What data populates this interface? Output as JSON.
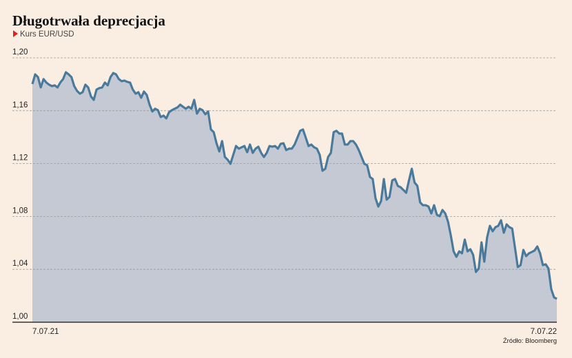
{
  "chart_data": {
    "type": "area",
    "title": "Długotrwała deprecjacja",
    "subtitle": "Kurs EUR/USD",
    "source": "Źródło: Bloomberg",
    "color": "#4a7a9b",
    "fill_color": "#c4c9d4",
    "grid": true,
    "ylim": [
      1.0,
      1.2
    ],
    "yticks": [
      {
        "value": 1.0,
        "label": "1,00"
      },
      {
        "value": 1.04,
        "label": "1,04"
      },
      {
        "value": 1.08,
        "label": "1,08"
      },
      {
        "value": 1.12,
        "label": "1,12"
      },
      {
        "value": 1.16,
        "label": "1,16"
      },
      {
        "value": 1.2,
        "label": "1,20"
      }
    ],
    "categories": [
      "7.07.21",
      null,
      null,
      null,
      null,
      null,
      null,
      null,
      null,
      null,
      null,
      null,
      null,
      null,
      null,
      null,
      null,
      null,
      null,
      null,
      null,
      null,
      null,
      null,
      null,
      null,
      null,
      null,
      null,
      null,
      null,
      null,
      null,
      null,
      null,
      null,
      null,
      null,
      null,
      null,
      null,
      null,
      null,
      null,
      null,
      null,
      null,
      null,
      null,
      null,
      null,
      null,
      null,
      null,
      null,
      null,
      null,
      null,
      null,
      null,
      null,
      null,
      null,
      null,
      null,
      null,
      null,
      null,
      null,
      null,
      null,
      null,
      null,
      null,
      null,
      null,
      null,
      null,
      null,
      null,
      null,
      null,
      null,
      null,
      null,
      null,
      null,
      null,
      null,
      null,
      null,
      null,
      null,
      null,
      null,
      null,
      null,
      null,
      null,
      null,
      null,
      null,
      null,
      null,
      null,
      null,
      null,
      null,
      null,
      null,
      null,
      null,
      null,
      null,
      null,
      null,
      null,
      null,
      null,
      null,
      null,
      null,
      null,
      null,
      null,
      null,
      null,
      null,
      null,
      null,
      null,
      null,
      null,
      null,
      null,
      null,
      null,
      null,
      null,
      null,
      null,
      null,
      null,
      null,
      null,
      null,
      null,
      null,
      null,
      null,
      null,
      null,
      null,
      null,
      null,
      null,
      null,
      null,
      null,
      null,
      null,
      null,
      null,
      null,
      null,
      null,
      null,
      null,
      null,
      null,
      null,
      null,
      null,
      null,
      null,
      null,
      null,
      null,
      null,
      null,
      null,
      null,
      null,
      null,
      null,
      null,
      null,
      null,
      "7.07.22"
    ],
    "values": [
      1.1802,
      1.1875,
      1.1854,
      1.1776,
      1.1839,
      1.1813,
      1.1797,
      1.1786,
      1.1792,
      1.1776,
      1.1813,
      1.1839,
      1.1891,
      1.1875,
      1.1854,
      1.1786,
      1.175,
      1.1729,
      1.174,
      1.1797,
      1.1776,
      1.1708,
      1.1682,
      1.176,
      1.1771,
      1.1776,
      1.1813,
      1.1792,
      1.1854,
      1.1885,
      1.1875,
      1.1839,
      1.1823,
      1.1828,
      1.1818,
      1.1813,
      1.176,
      1.1729,
      1.174,
      1.1698,
      1.1745,
      1.1719,
      1.1646,
      1.1594,
      1.1615,
      1.1604,
      1.1552,
      1.1563,
      1.1542,
      1.1589,
      1.1604,
      1.1615,
      1.1625,
      1.1646,
      1.163,
      1.1615,
      1.163,
      1.1615,
      1.1682,
      1.1578,
      1.1615,
      1.1604,
      1.1573,
      1.1594,
      1.1458,
      1.1438,
      1.1354,
      1.1292,
      1.137,
      1.125,
      1.1229,
      1.1198,
      1.1266,
      1.1333,
      1.1313,
      1.1323,
      1.1333,
      1.1286,
      1.1344,
      1.1281,
      1.1313,
      1.1328,
      1.1281,
      1.125,
      1.1281,
      1.1333,
      1.1328,
      1.1333,
      1.1313,
      1.1349,
      1.1354,
      1.1302,
      1.1313,
      1.1313,
      1.1344,
      1.1396,
      1.1448,
      1.1458,
      1.1396,
      1.1333,
      1.1344,
      1.1323,
      1.1313,
      1.1266,
      1.1146,
      1.1161,
      1.125,
      1.1281,
      1.1438,
      1.1448,
      1.1427,
      1.1427,
      1.1344,
      1.1344,
      1.137,
      1.137,
      1.1344,
      1.1302,
      1.125,
      1.1198,
      1.1188,
      1.1099,
      1.1083,
      1.0938,
      1.0875,
      1.0917,
      1.1083,
      1.0927,
      1.0948,
      1.1073,
      1.1083,
      1.1031,
      1.1021,
      1.1,
      1.0979,
      1.1073,
      1.1161,
      1.1057,
      1.1031,
      1.0906,
      1.0885,
      1.0885,
      1.0875,
      1.0823,
      1.0885,
      1.0813,
      1.0802,
      1.0849,
      1.0823,
      1.076,
      1.0656,
      1.0536,
      1.0495,
      1.0536,
      1.0521,
      1.0625,
      1.0536,
      1.0552,
      1.051,
      1.038,
      1.0406,
      1.0604,
      1.0458,
      1.0641,
      1.0729,
      1.0688,
      1.0719,
      1.0729,
      1.0771,
      1.0677,
      1.074,
      1.0719,
      1.0708,
      1.0563,
      1.0417,
      1.0432,
      1.0547,
      1.05,
      1.0521,
      1.0531,
      1.0542,
      1.0573,
      1.0521,
      1.0432,
      1.0438,
      1.0406,
      1.025,
      1.0188,
      1.0177
    ]
  }
}
